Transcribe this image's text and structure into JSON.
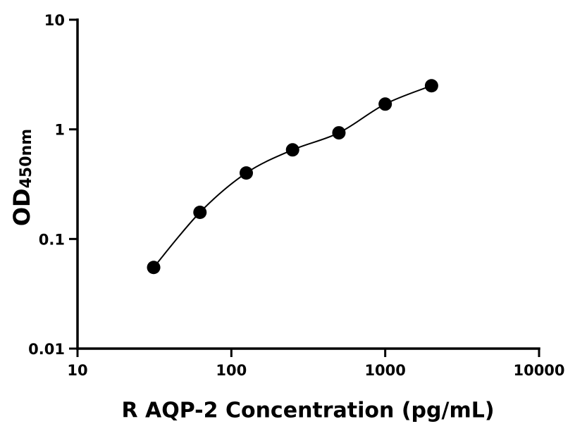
{
  "chart_data": {
    "type": "scatter",
    "x": [
      31.25,
      62.5,
      125,
      250,
      500,
      1000,
      2000
    ],
    "y": [
      0.055,
      0.175,
      0.4,
      0.65,
      0.93,
      1.7,
      2.5
    ],
    "curve": "smooth fitted line through points",
    "title": "",
    "xlabel": "R AQP-2 Concentration (pg/mL)",
    "ylabel": "OD450nm",
    "ylabel_main": "OD",
    "ylabel_sub": "450nm",
    "xscale": "log",
    "yscale": "log",
    "xlim": [
      10,
      10000
    ],
    "ylim": [
      0.01,
      10
    ],
    "xtick_values": [
      10,
      100,
      1000,
      10000
    ],
    "xtick_labels": [
      "10",
      "100",
      "1000",
      "10000"
    ],
    "ytick_values": [
      0.01,
      0.1,
      1,
      10
    ],
    "ytick_labels": [
      "0.01",
      "0.1",
      "1",
      "10"
    ],
    "grid": false,
    "legend": false,
    "marker": {
      "shape": "circle",
      "color": "#000000",
      "radius": 9.5
    },
    "line_color": "#000000",
    "line_width": 2,
    "axis_color": "#000000",
    "background": "#ffffff"
  }
}
